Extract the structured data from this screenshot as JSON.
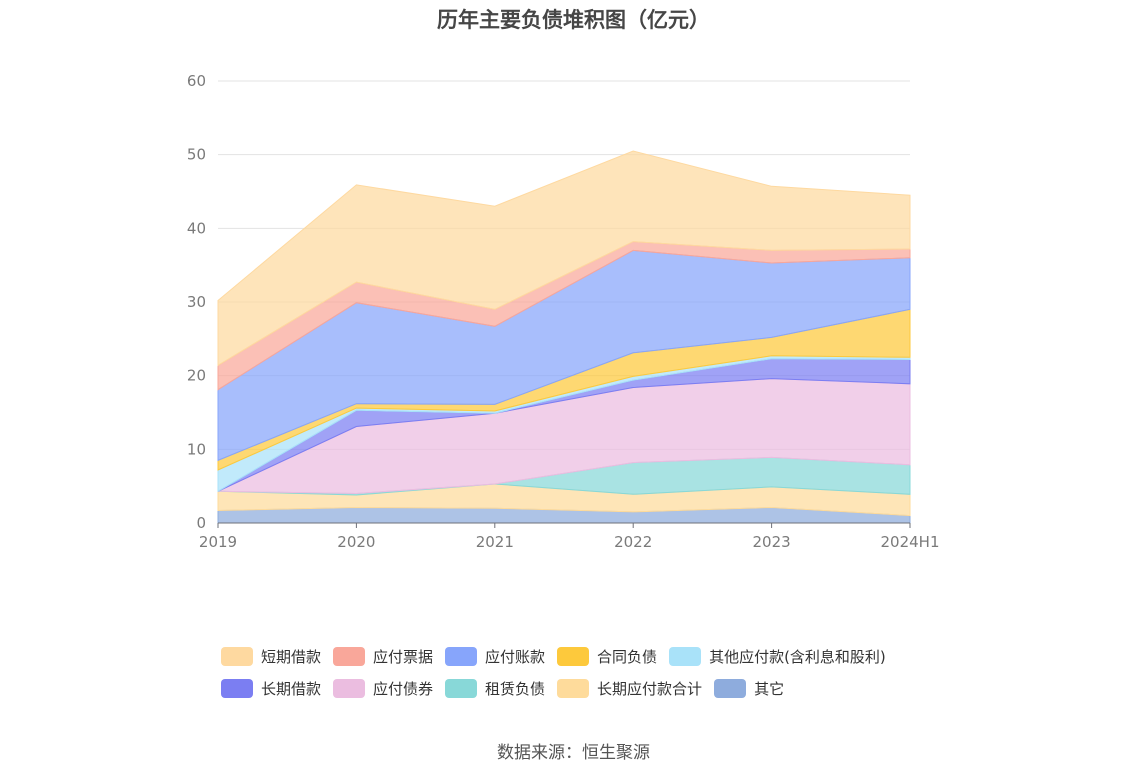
{
  "title": "历年主要负债堆积图（亿元）",
  "source": "数据来源：恒生聚源",
  "chart_data": {
    "type": "area",
    "stacked": true,
    "title": "历年主要负债堆积图（亿元）",
    "xlabel": "",
    "ylabel": "",
    "ylim": [
      0,
      60
    ],
    "yticks": [
      0,
      10,
      20,
      30,
      40,
      50,
      60
    ],
    "grid": true,
    "legend_position": "bottom",
    "categories": [
      "2019",
      "2020",
      "2021",
      "2022",
      "2023",
      "2024H1"
    ],
    "series": [
      {
        "name": "其它",
        "color": "#8eacdd",
        "values": [
          1.7,
          2.1,
          2.0,
          1.5,
          2.1,
          1.0
        ]
      },
      {
        "name": "长期应付款合计",
        "color": "#fedb9b",
        "values": [
          2.6,
          1.7,
          3.3,
          2.4,
          2.8,
          2.9
        ]
      },
      {
        "name": "租赁负债",
        "color": "#88d8d8",
        "values": [
          0.0,
          0.2,
          0.0,
          4.3,
          4.0,
          4.0
        ]
      },
      {
        "name": "应付债券",
        "color": "#ebbde0",
        "values": [
          0.0,
          9.1,
          9.6,
          10.2,
          10.7,
          11.0
        ]
      },
      {
        "name": "长期借款",
        "color": "#7b7ef2",
        "values": [
          0.0,
          2.2,
          0.0,
          1.0,
          2.7,
          3.3
        ]
      },
      {
        "name": "其他应付款(含利息和股利)",
        "color": "#a9e2f9",
        "values": [
          2.9,
          0.3,
          0.3,
          0.5,
          0.4,
          0.3
        ]
      },
      {
        "name": "合同负债",
        "color": "#fdc93c",
        "values": [
          1.3,
          0.6,
          0.9,
          3.2,
          2.5,
          6.5
        ]
      },
      {
        "name": "应付账款",
        "color": "#87a5fb",
        "values": [
          9.6,
          13.7,
          10.6,
          13.9,
          10.1,
          7.0
        ]
      },
      {
        "name": "应付票据",
        "color": "#f9a79a",
        "values": [
          3.3,
          2.8,
          2.3,
          1.2,
          1.7,
          1.2
        ]
      },
      {
        "name": "短期借款",
        "color": "#fed9a0",
        "values": [
          8.8,
          13.2,
          14.0,
          12.3,
          8.7,
          7.3
        ]
      }
    ],
    "legend_rows": [
      [
        "短期借款",
        "应付票据",
        "应付账款",
        "合同负债",
        "其他应付款(含利息和股利)"
      ],
      [
        "长期借款",
        "应付债券",
        "租赁负债",
        "长期应付款合计",
        "其它"
      ]
    ]
  }
}
